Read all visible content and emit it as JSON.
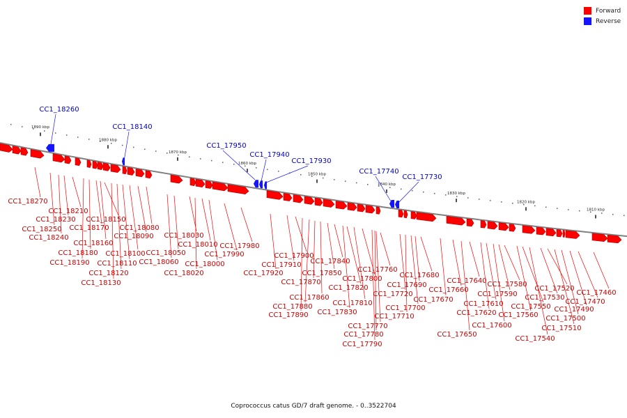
{
  "legend": {
    "forward_label": "Forward",
    "reverse_label": "Reverse",
    "forward_color": "#ff0000",
    "reverse_color": "#1414ff"
  },
  "caption": "Coprococcus catus GD/7 draft genome. - 0..3522704",
  "colors": {
    "forward": "#ff0000",
    "forward_dark": "#b40000",
    "reverse": "#1414ff",
    "backbone": "#808080",
    "forward_label": "#cc0000",
    "reverse_label": "#0000cc"
  },
  "scale_labels": [
    "1890 kbp",
    "1880 kbp",
    "1870 kbp",
    "1860 kbp",
    "1850 kbp",
    "1840 kbp",
    "1830 kbp",
    "1820 kbp",
    "1810 kbp"
  ],
  "reverse_genes": [
    "CC1_18260",
    "CC1_18140",
    "CC1_17950",
    "CC1_17940",
    "CC1_17930",
    "CC1_17740",
    "CC1_17730"
  ],
  "forward_genes": [
    "CC1_18270",
    "CC1_18250",
    "CC1_18240",
    "CC1_18230",
    "CC1_18210",
    "CC1_18190",
    "CC1_18180",
    "CC1_18170",
    "CC1_18160",
    "CC1_18150",
    "CC1_18130",
    "CC1_18120",
    "CC1_18110",
    "CC1_18100",
    "CC1_18090",
    "CC1_18080",
    "CC1_18060",
    "CC1_18050",
    "CC1_18030",
    "CC1_18020",
    "CC1_18010",
    "CC1_18000",
    "CC1_17990",
    "CC1_17980",
    "CC1_17920",
    "CC1_17910",
    "CC1_17900",
    "CC1_17890",
    "CC1_17880",
    "CC1_17870",
    "CC1_17860",
    "CC1_17850",
    "CC1_17840",
    "CC1_17830",
    "CC1_17820",
    "CC1_17810",
    "CC1_17800",
    "CC1_17790",
    "CC1_17780",
    "CC1_17770",
    "CC1_17760",
    "CC1_17720",
    "CC1_17710",
    "CC1_17700",
    "CC1_17690",
    "CC1_17680",
    "CC1_17670",
    "CC1_17660",
    "CC1_17650",
    "CC1_17640",
    "CC1_17620",
    "CC1_17610",
    "CC1_17600",
    "CC1_17590",
    "CC1_17580",
    "CC1_17560",
    "CC1_17550",
    "CC1_17540",
    "CC1_17530",
    "CC1_17520",
    "CC1_17510",
    "CC1_17500",
    "CC1_17490",
    "CC1_17470",
    "CC1_17460"
  ]
}
